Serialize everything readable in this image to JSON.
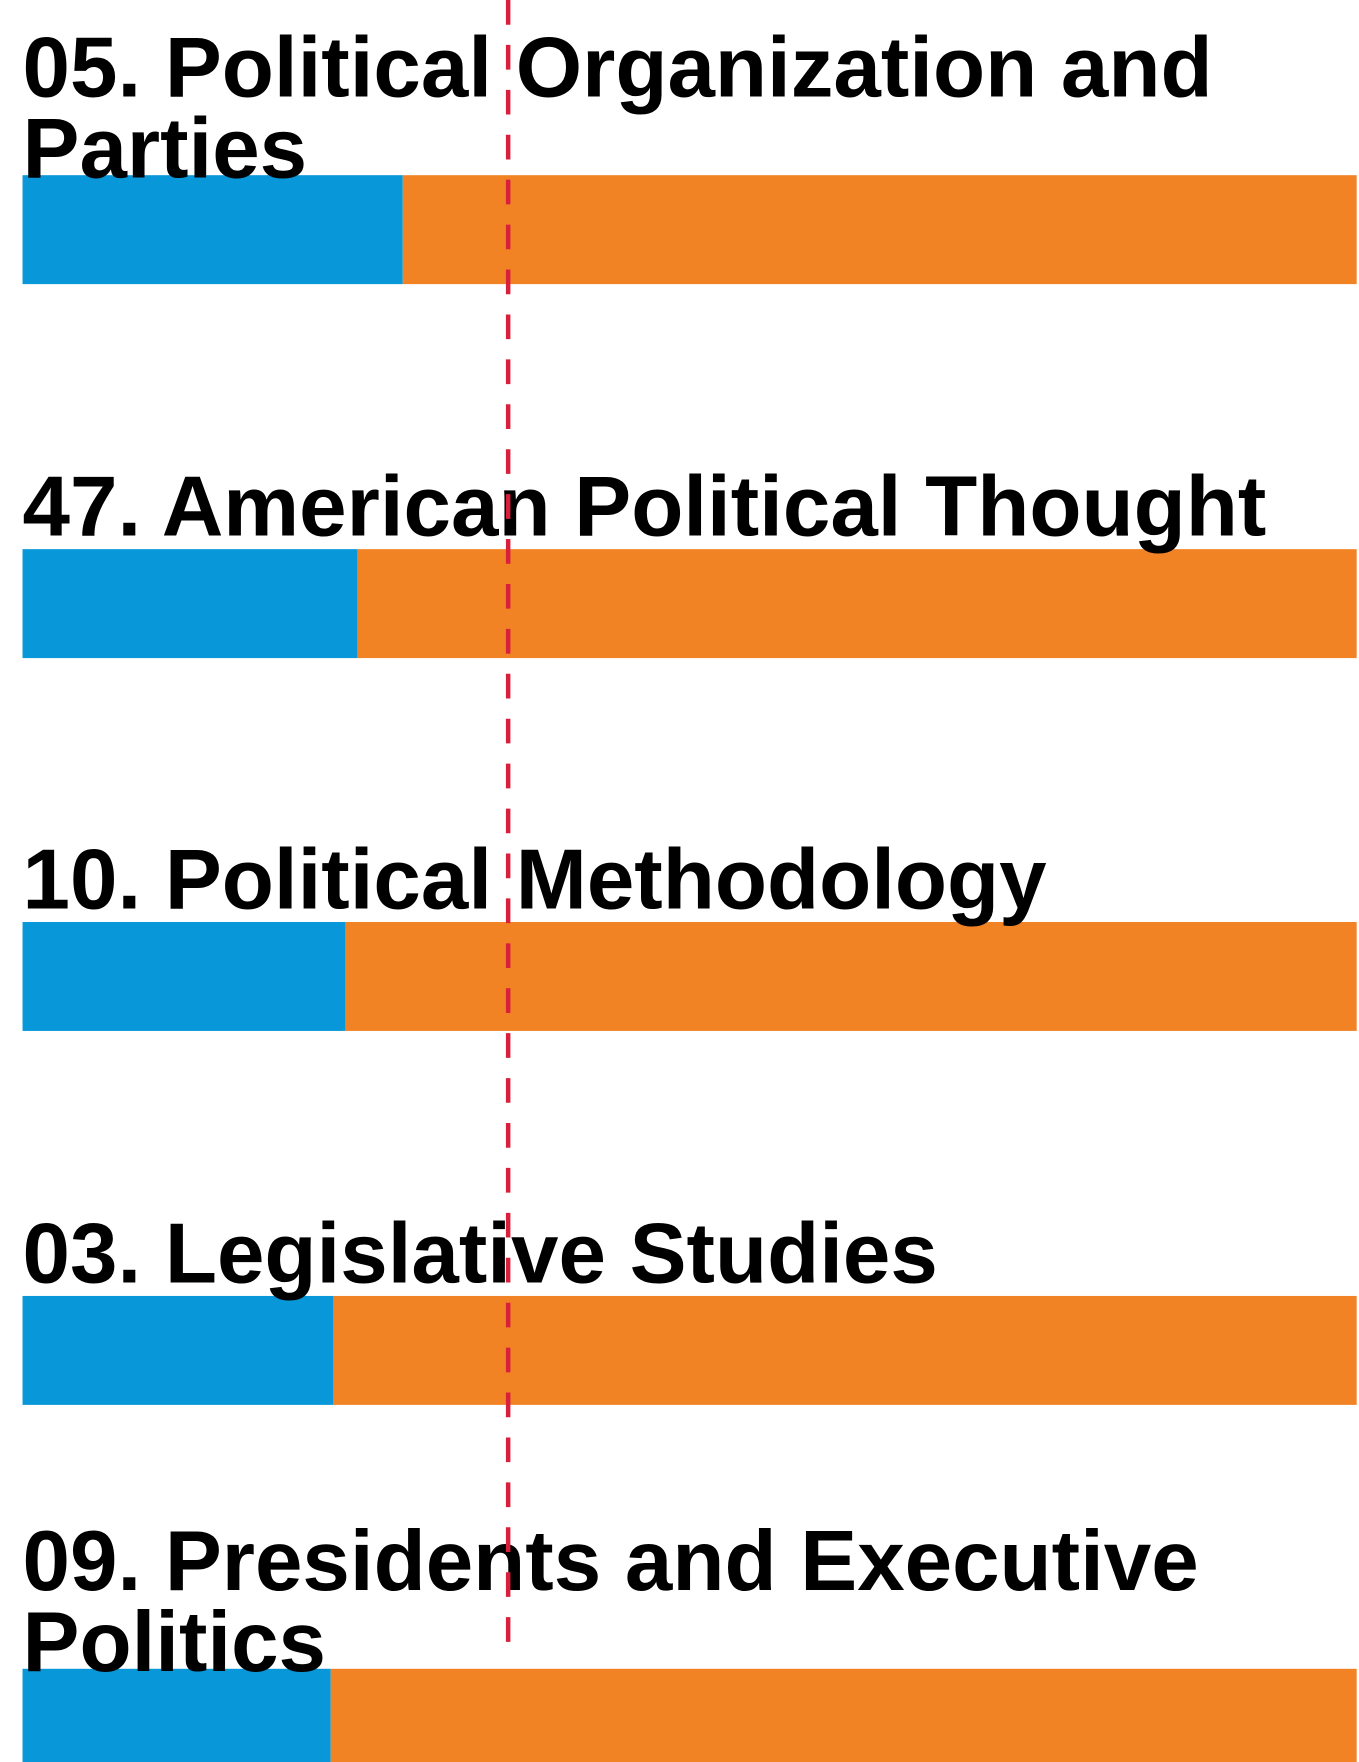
{
  "chart_data": {
    "type": "stacked-bar-horizontal",
    "categories": [
      "05. Political Organization and Parties",
      "47. American Political Thought",
      "10. Political Methodology",
      "03. Legislative Studies",
      "09. Presidents and Executive Politics"
    ],
    "series": [
      {
        "color": "#0897d8",
        "values": [
          28.5,
          25.1,
          24.2,
          23.3,
          23.1
        ]
      },
      {
        "color": "#f28325",
        "values": [
          71.5,
          74.9,
          75.8,
          76.7,
          76.9
        ]
      }
    ],
    "xlim": [
      0,
      100
    ],
    "reference_line": {
      "value": 36.4,
      "color": "#d6203c",
      "style": "dashed"
    }
  }
}
